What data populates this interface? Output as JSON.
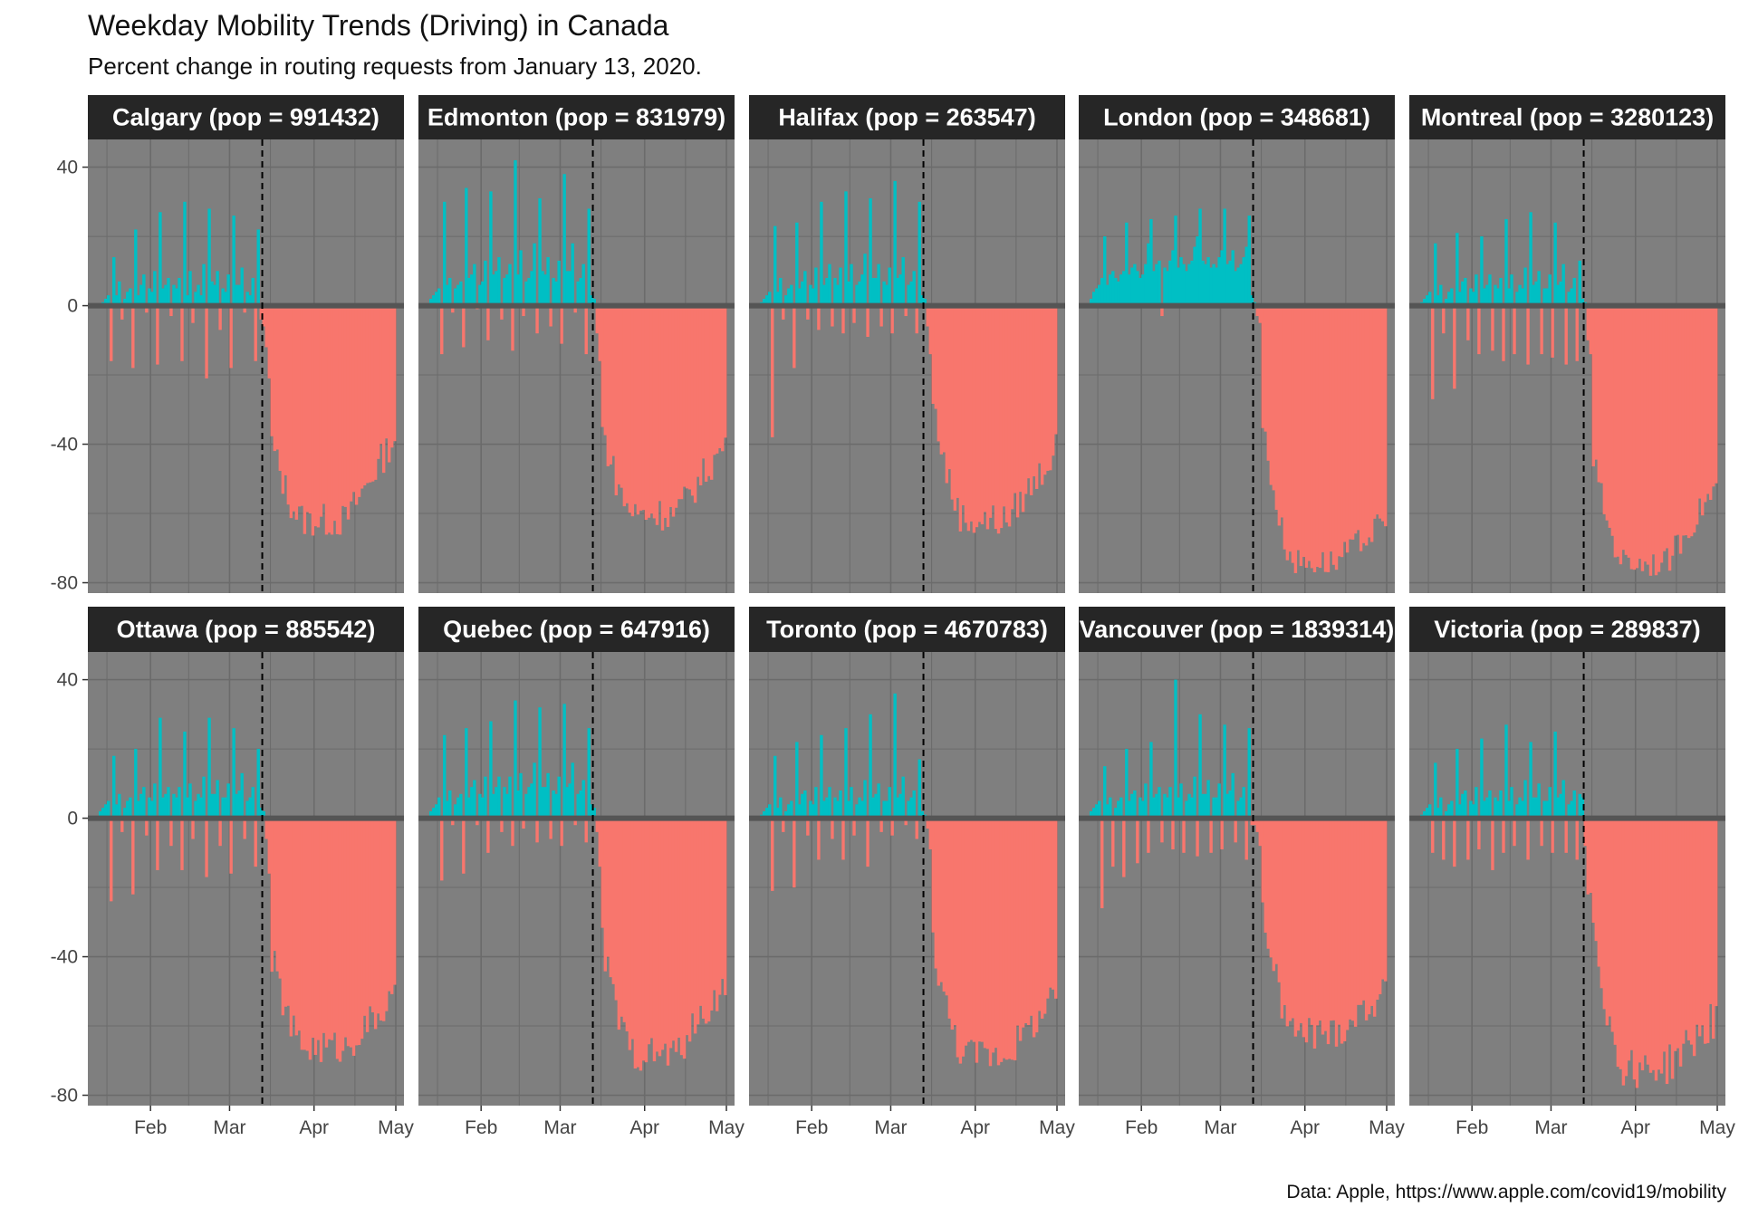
{
  "title": "Weekday Mobility Trends (Driving) in Canada",
  "subtitle": "Percent change in routing requests from January 13, 2020.",
  "caption": "Data: Apple, https://www.apple.com/covid19/mobility",
  "colors": {
    "panel_bg": "#7f7f7f",
    "strip_bg": "#262626",
    "grid": "#6b6b6b",
    "zero_line": "#555555",
    "positive": "#00bfc4",
    "negative": "#f8766d",
    "vline": "#000000"
  },
  "chart_data": {
    "type": "bar",
    "facet_layout": {
      "rows": 2,
      "cols": 5
    },
    "x_range": [
      "2020-01-13",
      "2020-04-30"
    ],
    "y_range": [
      -83,
      48
    ],
    "x_ticks": [
      {
        "label": "Feb",
        "date": "2020-02-01"
      },
      {
        "label": "Mar",
        "date": "2020-03-01"
      },
      {
        "label": "Apr",
        "date": "2020-04-01"
      },
      {
        "label": "May",
        "date": "2020-05-01"
      }
    ],
    "y_ticks": [
      40,
      0,
      -40,
      -80
    ],
    "vline_date": "2020-03-13",
    "legend": "none",
    "facets": [
      {
        "label": "Calgary (pop = 991432)",
        "pre_values": [
          0,
          1,
          2,
          3,
          -16,
          14,
          3,
          7,
          -4,
          2,
          4,
          5,
          -18,
          22,
          3,
          6,
          9,
          -2,
          5,
          4,
          10,
          -17,
          27,
          5,
          6,
          8,
          -3,
          6,
          5,
          8,
          -16,
          30,
          3,
          10,
          -5,
          4,
          6,
          3,
          12,
          -21,
          28,
          7,
          6,
          10,
          -7,
          5,
          4,
          9,
          -18,
          26,
          6,
          6,
          11,
          -2,
          4,
          3,
          8,
          -16,
          22,
          -4,
          -6,
          -12,
          -21
        ],
        "post": {
          "start": -40,
          "trough": -62,
          "end": -38,
          "noise": 5
        }
      },
      {
        "label": "Edmonton (pop = 831979)",
        "pre_values": [
          2,
          3,
          4,
          5,
          -14,
          30,
          6,
          8,
          -2,
          5,
          6,
          7,
          -12,
          34,
          8,
          9,
          12,
          -1,
          6,
          7,
          13,
          -10,
          33,
          9,
          10,
          14,
          -4,
          8,
          9,
          12,
          -13,
          42,
          9,
          16,
          -3,
          7,
          8,
          10,
          18,
          -8,
          31,
          10,
          9,
          14,
          -6,
          8,
          7,
          13,
          -11,
          38,
          10,
          10,
          18,
          -2,
          7,
          8,
          12,
          -14,
          28,
          3,
          2,
          -8,
          -16
        ],
        "post": {
          "start": -36,
          "trough": -60,
          "end": -40,
          "noise": 5
        }
      },
      {
        "label": "Halifax (pop = 263547)",
        "pre_values": [
          1,
          2,
          3,
          4,
          -38,
          23,
          4,
          8,
          -4,
          3,
          5,
          6,
          -18,
          24,
          5,
          7,
          10,
          -4,
          6,
          5,
          11,
          -7,
          30,
          6,
          8,
          12,
          -6,
          8,
          6,
          11,
          -8,
          33,
          7,
          12,
          -5,
          6,
          7,
          9,
          15,
          -9,
          31,
          8,
          8,
          12,
          -6,
          7,
          6,
          11,
          -8,
          36,
          8,
          9,
          14,
          -3,
          6,
          7,
          10,
          -8,
          30,
          3,
          2,
          -6,
          -14
        ],
        "post": {
          "start": -28,
          "trough": -62,
          "end": -42,
          "noise": 5
        }
      },
      {
        "label": "London (pop = 348681)",
        "pre_values": [
          2,
          4,
          5,
          6,
          8,
          20,
          6,
          9,
          10,
          8,
          7,
          9,
          10,
          24,
          9,
          11,
          12,
          10,
          8,
          9,
          12,
          18,
          25,
          10,
          12,
          13,
          -3,
          11,
          10,
          13,
          16,
          26,
          11,
          14,
          12,
          10,
          12,
          13,
          17,
          20,
          28,
          13,
          12,
          14,
          11,
          12,
          11,
          14,
          16,
          28,
          12,
          13,
          16,
          10,
          11,
          12,
          14,
          17,
          26,
          3,
          1,
          -3,
          -5
        ],
        "post": {
          "start": -34,
          "trough": -74,
          "end": -62,
          "noise": 4
        }
      },
      {
        "label": "Montreal (pop = 3280123)",
        "pre_values": [
          1,
          2,
          3,
          4,
          -27,
          18,
          3,
          6,
          -8,
          2,
          4,
          5,
          -24,
          21,
          4,
          7,
          8,
          -10,
          5,
          4,
          9,
          -14,
          20,
          5,
          6,
          9,
          -13,
          6,
          5,
          8,
          -16,
          25,
          5,
          9,
          -14,
          4,
          6,
          5,
          11,
          -17,
          27,
          6,
          7,
          10,
          -14,
          5,
          5,
          9,
          -15,
          24,
          6,
          7,
          12,
          -17,
          4,
          5,
          8,
          -16,
          13,
          2,
          1,
          -10,
          -14
        ],
        "post": {
          "start": -44,
          "trough": -74,
          "end": -52,
          "noise": 4
        }
      },
      {
        "label": "Ottawa (pop = 885542)",
        "pre_values": [
          2,
          3,
          4,
          5,
          -24,
          18,
          4,
          7,
          -4,
          3,
          5,
          6,
          -22,
          20,
          5,
          7,
          9,
          -5,
          6,
          5,
          10,
          -15,
          29,
          6,
          7,
          9,
          -8,
          7,
          6,
          9,
          -15,
          25,
          6,
          10,
          -6,
          5,
          7,
          6,
          12,
          -17,
          29,
          7,
          7,
          11,
          -8,
          6,
          6,
          10,
          -16,
          26,
          7,
          8,
          13,
          -6,
          5,
          6,
          9,
          -14,
          20,
          3,
          2,
          -6,
          -16
        ],
        "post": {
          "start": -40,
          "trough": -66,
          "end": -52,
          "noise": 5
        }
      },
      {
        "label": "Quebec (pop = 647916)",
        "pre_values": [
          2,
          3,
          4,
          6,
          -18,
          24,
          5,
          8,
          -2,
          4,
          6,
          7,
          -16,
          26,
          6,
          9,
          11,
          -2,
          7,
          6,
          12,
          -10,
          28,
          7,
          9,
          12,
          -4,
          9,
          7,
          12,
          -8,
          34,
          8,
          13,
          -3,
          7,
          9,
          10,
          16,
          -7,
          32,
          9,
          9,
          13,
          -6,
          8,
          7,
          12,
          -8,
          33,
          9,
          10,
          16,
          -2,
          7,
          8,
          11,
          -7,
          26,
          4,
          3,
          -4,
          -14
        ],
        "post": {
          "start": -36,
          "trough": -68,
          "end": -48,
          "noise": 5
        }
      },
      {
        "label": "Toronto (pop = 4670783)",
        "pre_values": [
          1,
          2,
          3,
          4,
          -21,
          18,
          3,
          6,
          -4,
          2,
          4,
          5,
          -20,
          22,
          4,
          7,
          8,
          -5,
          5,
          4,
          9,
          -12,
          24,
          5,
          6,
          9,
          -6,
          6,
          5,
          8,
          -12,
          26,
          5,
          9,
          -5,
          4,
          6,
          5,
          11,
          -14,
          30,
          6,
          7,
          10,
          -4,
          5,
          5,
          9,
          -5,
          36,
          6,
          7,
          12,
          -2,
          5,
          6,
          8,
          -6,
          17,
          2,
          1,
          -3,
          -9
        ],
        "post": {
          "start": -36,
          "trough": -68,
          "end": -52,
          "noise": 5
        }
      },
      {
        "label": "Vancouver (pop = 1839314)",
        "pre_values": [
          2,
          3,
          4,
          5,
          -26,
          15,
          4,
          6,
          -14,
          3,
          5,
          6,
          -17,
          20,
          5,
          7,
          8,
          -13,
          6,
          5,
          10,
          -10,
          22,
          6,
          7,
          9,
          -7,
          7,
          6,
          9,
          -9,
          40,
          6,
          10,
          -10,
          5,
          7,
          6,
          12,
          -11,
          30,
          7,
          7,
          11,
          -10,
          6,
          6,
          10,
          -9,
          27,
          7,
          8,
          13,
          -7,
          5,
          6,
          9,
          -12,
          26,
          -2,
          -2,
          -4,
          -8
        ],
        "post": {
          "start": -26,
          "trough": -62,
          "end": -50,
          "noise": 5
        }
      },
      {
        "label": "Victoria (pop = 289837)",
        "pre_values": [
          1,
          2,
          3,
          4,
          -10,
          16,
          3,
          6,
          -12,
          2,
          4,
          5,
          -14,
          20,
          4,
          7,
          8,
          -12,
          5,
          4,
          9,
          -9,
          23,
          5,
          6,
          8,
          -15,
          6,
          5,
          8,
          -10,
          27,
          5,
          9,
          -8,
          4,
          6,
          5,
          11,
          -12,
          22,
          6,
          6,
          10,
          -8,
          5,
          5,
          9,
          -10,
          25,
          6,
          7,
          11,
          -10,
          4,
          5,
          8,
          -12,
          7,
          6,
          -8,
          -22
        ],
        "post": {
          "start": -22,
          "trough": -72,
          "end": -58,
          "noise": 6
        }
      }
    ]
  }
}
